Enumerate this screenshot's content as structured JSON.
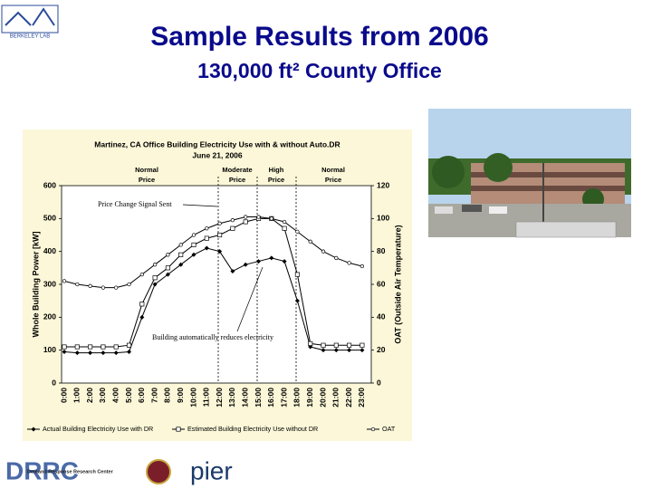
{
  "slide": {
    "title": "Sample Results from 2006",
    "subtitle": "130,000 ft² County Office",
    "logos": {
      "lab": "BERKELEY LAB",
      "drrc": "DRRC",
      "drrc_caption": "Demand Response Research Center",
      "pier": "pier"
    }
  },
  "chart_data": {
    "type": "line",
    "title": "Martinez, CA Office Building Electricity Use with & without Auto.DR",
    "subtitle": "June 21, 2006",
    "ylabel": "Whole Building Power [kW]",
    "y2label": "OAT (Outside Air Temperature)",
    "categories": [
      "0:00",
      "1:00",
      "2:00",
      "3:00",
      "4:00",
      "5:00",
      "6:00",
      "7:00",
      "8:00",
      "9:00",
      "10:00",
      "11:00",
      "12:00",
      "13:00",
      "14:00",
      "15:00",
      "16:00",
      "17:00",
      "18:00",
      "19:00",
      "20:00",
      "21:00",
      "22:00",
      "23:00"
    ],
    "ylim": [
      0,
      600
    ],
    "yticks": [
      0,
      100,
      200,
      300,
      400,
      500,
      600
    ],
    "y2lim": [
      0,
      120
    ],
    "y2ticks": [
      0,
      20,
      40,
      60,
      80,
      100,
      120
    ],
    "series": [
      {
        "name": "Actual Building Electricity Use with DR",
        "color": "#000000",
        "marker": "diamond",
        "values": [
          95,
          92,
          92,
          92,
          92,
          95,
          200,
          300,
          330,
          360,
          390,
          410,
          400,
          340,
          360,
          370,
          380,
          370,
          250,
          110,
          100,
          100,
          100,
          100
        ]
      },
      {
        "name": "Estimated Building Electricity Use without DR",
        "color": "#000000",
        "marker": "square",
        "values": [
          110,
          110,
          110,
          110,
          110,
          115,
          240,
          320,
          350,
          390,
          420,
          440,
          450,
          470,
          490,
          500,
          500,
          470,
          330,
          120,
          115,
          115,
          115,
          115
        ]
      },
      {
        "name": "OAT",
        "color": "#000000",
        "marker": "circle",
        "axis": "y2",
        "values": [
          62,
          60,
          59,
          58,
          58,
          60,
          66,
          72,
          78,
          84,
          90,
          94,
          97,
          99,
          101,
          101,
          100,
          98,
          92,
          86,
          80,
          76,
          73,
          71
        ]
      }
    ],
    "price_periods": [
      [
        "Normal",
        "Price"
      ],
      [
        "Moderate",
        "Price"
      ],
      [
        "High",
        "Price"
      ],
      [
        "Normal",
        "Price"
      ]
    ],
    "annotations": [
      "Price Change Signal Sent",
      "Building automatically reduces electricity"
    ]
  }
}
